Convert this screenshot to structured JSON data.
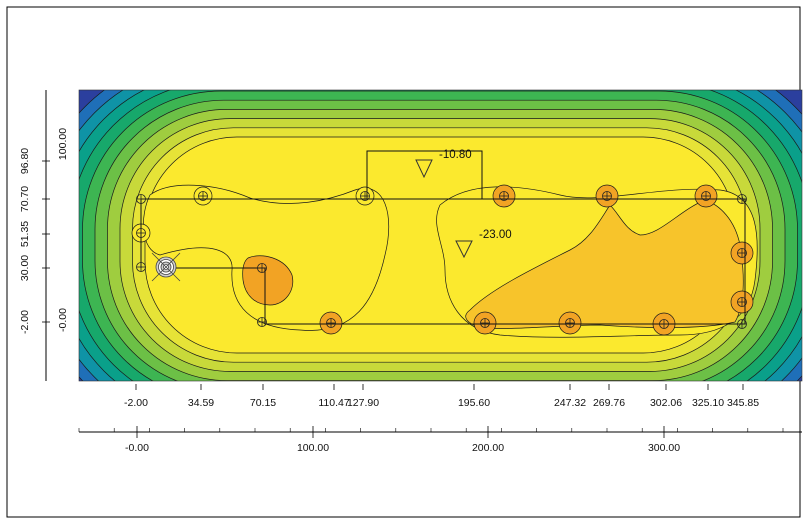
{
  "colors": {
    "background": "#ffffff",
    "frame": "#000000",
    "contour_line": "#1a1a1a",
    "band_colors": [
      "#2b3f9e",
      "#1f6fb8",
      "#0f93a6",
      "#0aa08a",
      "#17a86b",
      "#3db552",
      "#6cc046",
      "#9fcd3f",
      "#c8d93a",
      "#e6e337",
      "#fbe92e",
      "#f7c42b",
      "#f2a324",
      "#ef8a24",
      "#e06a2a"
    ]
  },
  "top_x_ticks": [
    "-2.00",
    "34.59",
    "70.15",
    "110.47",
    "127.90",
    "195.60",
    "247.32",
    "269.76",
    "302.06",
    "325.10",
    "345.85"
  ],
  "bottom_x_ticks": [
    "-0.00",
    "100.00",
    "200.00",
    "300.00"
  ],
  "left_y_ticks_outer": [
    "-2.00",
    "30.00",
    "51.35",
    "70.70",
    "96.80"
  ],
  "left_y_ticks_inner": [
    "-0.00",
    "100.00"
  ],
  "annotations": [
    "-10.80",
    "-23.00"
  ],
  "icons": {
    "well_marker": "crosshair-circle-icon",
    "datum_marker": "bullseye-icon",
    "level_marker": "triangle-down-icon"
  }
}
